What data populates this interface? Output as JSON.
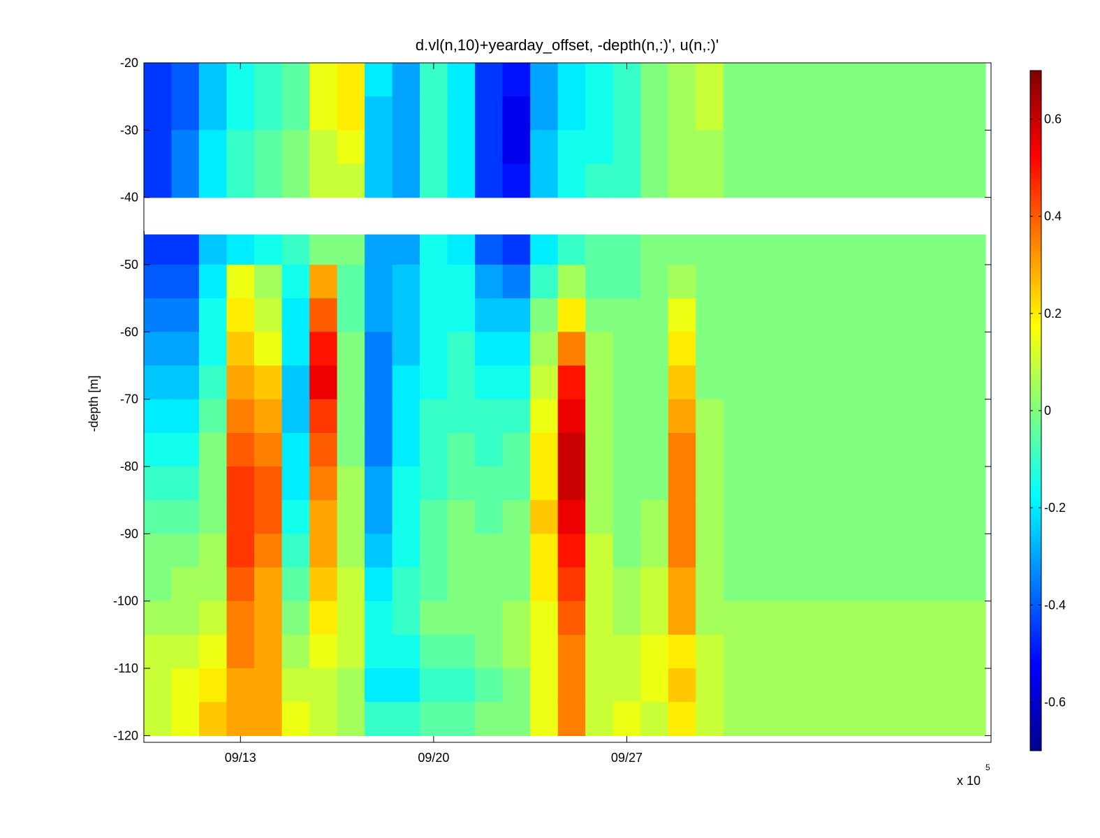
{
  "chart_data": {
    "type": "heatmap",
    "title": "d.vl(n,10)+yearday_offset, -depth(n,:)', u(n,:)'",
    "ylabel": "-depth [m]",
    "xlabel": "",
    "x_multiplier": "x 10",
    "x_multiplier_exp": "5",
    "xlim_days": [
      9.5,
      40.2
    ],
    "ylim": [
      -121,
      -20
    ],
    "x_ticks": [
      {
        "day": 13,
        "label": "09/13"
      },
      {
        "day": 20,
        "label": "09/20"
      },
      {
        "day": 27,
        "label": "09/27"
      }
    ],
    "y_ticks": [
      -20,
      -30,
      -40,
      -50,
      -60,
      -70,
      -80,
      -90,
      -100,
      -110,
      -120
    ],
    "colorbar": {
      "colormap": "jet",
      "clim": [
        -0.7,
        0.7
      ],
      "ticks": [
        0.6,
        0.4,
        0.2,
        0,
        -0.2,
        -0.4,
        -0.6
      ],
      "tick_labels": [
        "0.6",
        "0.4",
        "0.2",
        "0",
        "-0.2",
        "-0.4",
        "-0.6"
      ]
    },
    "gap_depth": [
      -41,
      -45.5
    ],
    "depth_levels": [
      -22.5,
      -27.5,
      -32.5,
      -37.5,
      -47.5,
      -52.5,
      -57.5,
      -62.5,
      -67.5,
      -72.5,
      -77.5,
      -82.5,
      -87.5,
      -92.5,
      -97.5,
      -102.5,
      -107.5,
      -112.5,
      -117.5
    ],
    "time_days": [
      10,
      11,
      12,
      13,
      14,
      15,
      16,
      17,
      18,
      19,
      20,
      21,
      22,
      23,
      24,
      25,
      26,
      27,
      28,
      29,
      30,
      31
    ],
    "u_values": [
      [
        -0.45,
        -0.4,
        -0.25,
        -0.15,
        -0.1,
        -0.05,
        0.15,
        0.2,
        -0.2,
        -0.3,
        -0.1,
        -0.2,
        -0.45,
        -0.5,
        -0.3,
        -0.2,
        -0.15,
        -0.1,
        0.0,
        0.05,
        0.1,
        0.0
      ],
      [
        -0.45,
        -0.4,
        -0.25,
        -0.15,
        -0.1,
        -0.05,
        0.15,
        0.2,
        -0.25,
        -0.3,
        -0.1,
        -0.2,
        -0.45,
        -0.55,
        -0.3,
        -0.2,
        -0.15,
        -0.1,
        0.0,
        0.05,
        0.1,
        0.0
      ],
      [
        -0.45,
        -0.35,
        -0.2,
        -0.1,
        -0.05,
        0.0,
        0.1,
        0.15,
        -0.25,
        -0.3,
        -0.1,
        -0.2,
        -0.45,
        -0.55,
        -0.25,
        -0.15,
        -0.15,
        -0.1,
        0.0,
        0.05,
        0.05,
        0.0
      ],
      [
        -0.45,
        -0.35,
        -0.2,
        -0.1,
        -0.05,
        0.0,
        0.1,
        0.1,
        -0.25,
        -0.3,
        -0.1,
        -0.2,
        -0.45,
        -0.5,
        -0.25,
        -0.15,
        -0.1,
        -0.1,
        0.0,
        0.05,
        0.05,
        0.0
      ],
      [
        -0.45,
        -0.45,
        -0.25,
        -0.2,
        -0.15,
        -0.1,
        0.0,
        0.0,
        -0.3,
        -0.3,
        -0.15,
        -0.2,
        -0.4,
        -0.45,
        -0.2,
        -0.1,
        -0.05,
        -0.05,
        0.0,
        0.0,
        0.0,
        0.0
      ],
      [
        -0.4,
        -0.4,
        -0.2,
        0.15,
        0.05,
        -0.15,
        0.3,
        -0.05,
        -0.3,
        -0.25,
        -0.15,
        -0.15,
        -0.3,
        -0.35,
        -0.1,
        0.05,
        -0.05,
        -0.05,
        0.0,
        0.05,
        0.0,
        0.0
      ],
      [
        -0.35,
        -0.35,
        -0.15,
        0.2,
        0.1,
        -0.2,
        0.4,
        -0.05,
        -0.3,
        -0.25,
        -0.15,
        -0.15,
        -0.25,
        -0.25,
        0.0,
        0.2,
        0.0,
        0.0,
        0.0,
        0.15,
        0.0,
        0.0
      ],
      [
        -0.3,
        -0.3,
        -0.15,
        0.25,
        0.15,
        -0.2,
        0.5,
        0.0,
        -0.35,
        -0.25,
        -0.15,
        -0.1,
        -0.2,
        -0.2,
        0.05,
        0.35,
        0.05,
        0.0,
        0.0,
        0.2,
        0.0,
        0.0
      ],
      [
        -0.25,
        -0.25,
        -0.1,
        0.3,
        0.25,
        -0.25,
        0.55,
        0.0,
        -0.35,
        -0.2,
        -0.15,
        -0.1,
        -0.15,
        -0.15,
        0.1,
        0.5,
        0.05,
        0.0,
        0.0,
        0.25,
        0.0,
        0.0
      ],
      [
        -0.2,
        -0.2,
        -0.05,
        0.35,
        0.3,
        -0.25,
        0.45,
        0.0,
        -0.35,
        -0.2,
        -0.1,
        -0.1,
        -0.1,
        -0.1,
        0.15,
        0.55,
        0.05,
        0.0,
        0.0,
        0.3,
        0.05,
        0.0
      ],
      [
        -0.15,
        -0.15,
        0.0,
        0.4,
        0.35,
        -0.2,
        0.4,
        0.0,
        -0.35,
        -0.2,
        -0.1,
        -0.05,
        -0.1,
        -0.05,
        0.2,
        0.6,
        0.05,
        0.0,
        0.0,
        0.35,
        0.05,
        0.0
      ],
      [
        -0.1,
        -0.1,
        0.0,
        0.45,
        0.4,
        -0.2,
        0.35,
        0.05,
        -0.3,
        -0.15,
        -0.1,
        -0.05,
        -0.05,
        -0.05,
        0.2,
        0.6,
        0.05,
        0.0,
        0.0,
        0.35,
        0.05,
        0.0
      ],
      [
        -0.05,
        -0.05,
        0.0,
        0.45,
        0.4,
        -0.15,
        0.3,
        0.05,
        -0.3,
        -0.15,
        -0.05,
        0.0,
        -0.05,
        0.0,
        0.25,
        0.55,
        0.05,
        0.0,
        0.05,
        0.35,
        0.05,
        0.0
      ],
      [
        0.0,
        0.0,
        0.05,
        0.45,
        0.35,
        -0.1,
        0.3,
        0.05,
        -0.25,
        -0.15,
        -0.05,
        0.0,
        0.0,
        0.0,
        0.2,
        0.5,
        0.1,
        0.0,
        0.05,
        0.35,
        0.05,
        0.0
      ],
      [
        0.0,
        0.05,
        0.05,
        0.4,
        0.3,
        -0.05,
        0.25,
        0.1,
        -0.2,
        -0.1,
        -0.05,
        0.0,
        0.0,
        0.0,
        0.2,
        0.45,
        0.1,
        0.05,
        0.1,
        0.3,
        0.05,
        0.0
      ],
      [
        0.05,
        0.05,
        0.1,
        0.35,
        0.3,
        0.0,
        0.2,
        0.1,
        -0.15,
        -0.1,
        0.0,
        0.0,
        0.0,
        0.05,
        0.15,
        0.4,
        0.1,
        0.05,
        0.1,
        0.3,
        0.05,
        0.05
      ],
      [
        0.1,
        0.1,
        0.15,
        0.35,
        0.3,
        0.05,
        0.15,
        0.1,
        -0.15,
        -0.15,
        -0.05,
        -0.05,
        0.0,
        0.05,
        0.15,
        0.35,
        0.1,
        0.1,
        0.15,
        0.2,
        0.1,
        0.05
      ],
      [
        0.1,
        0.15,
        0.2,
        0.3,
        0.3,
        0.1,
        0.1,
        0.05,
        -0.2,
        -0.2,
        -0.1,
        -0.1,
        -0.05,
        0.0,
        0.15,
        0.35,
        0.1,
        0.1,
        0.15,
        0.25,
        0.1,
        0.05
      ],
      [
        0.1,
        0.15,
        0.25,
        0.3,
        0.3,
        0.15,
        0.1,
        0.05,
        -0.1,
        -0.1,
        -0.05,
        -0.05,
        0.0,
        0.0,
        0.15,
        0.35,
        0.1,
        0.15,
        0.1,
        0.2,
        0.1,
        0.05
      ]
    ]
  }
}
